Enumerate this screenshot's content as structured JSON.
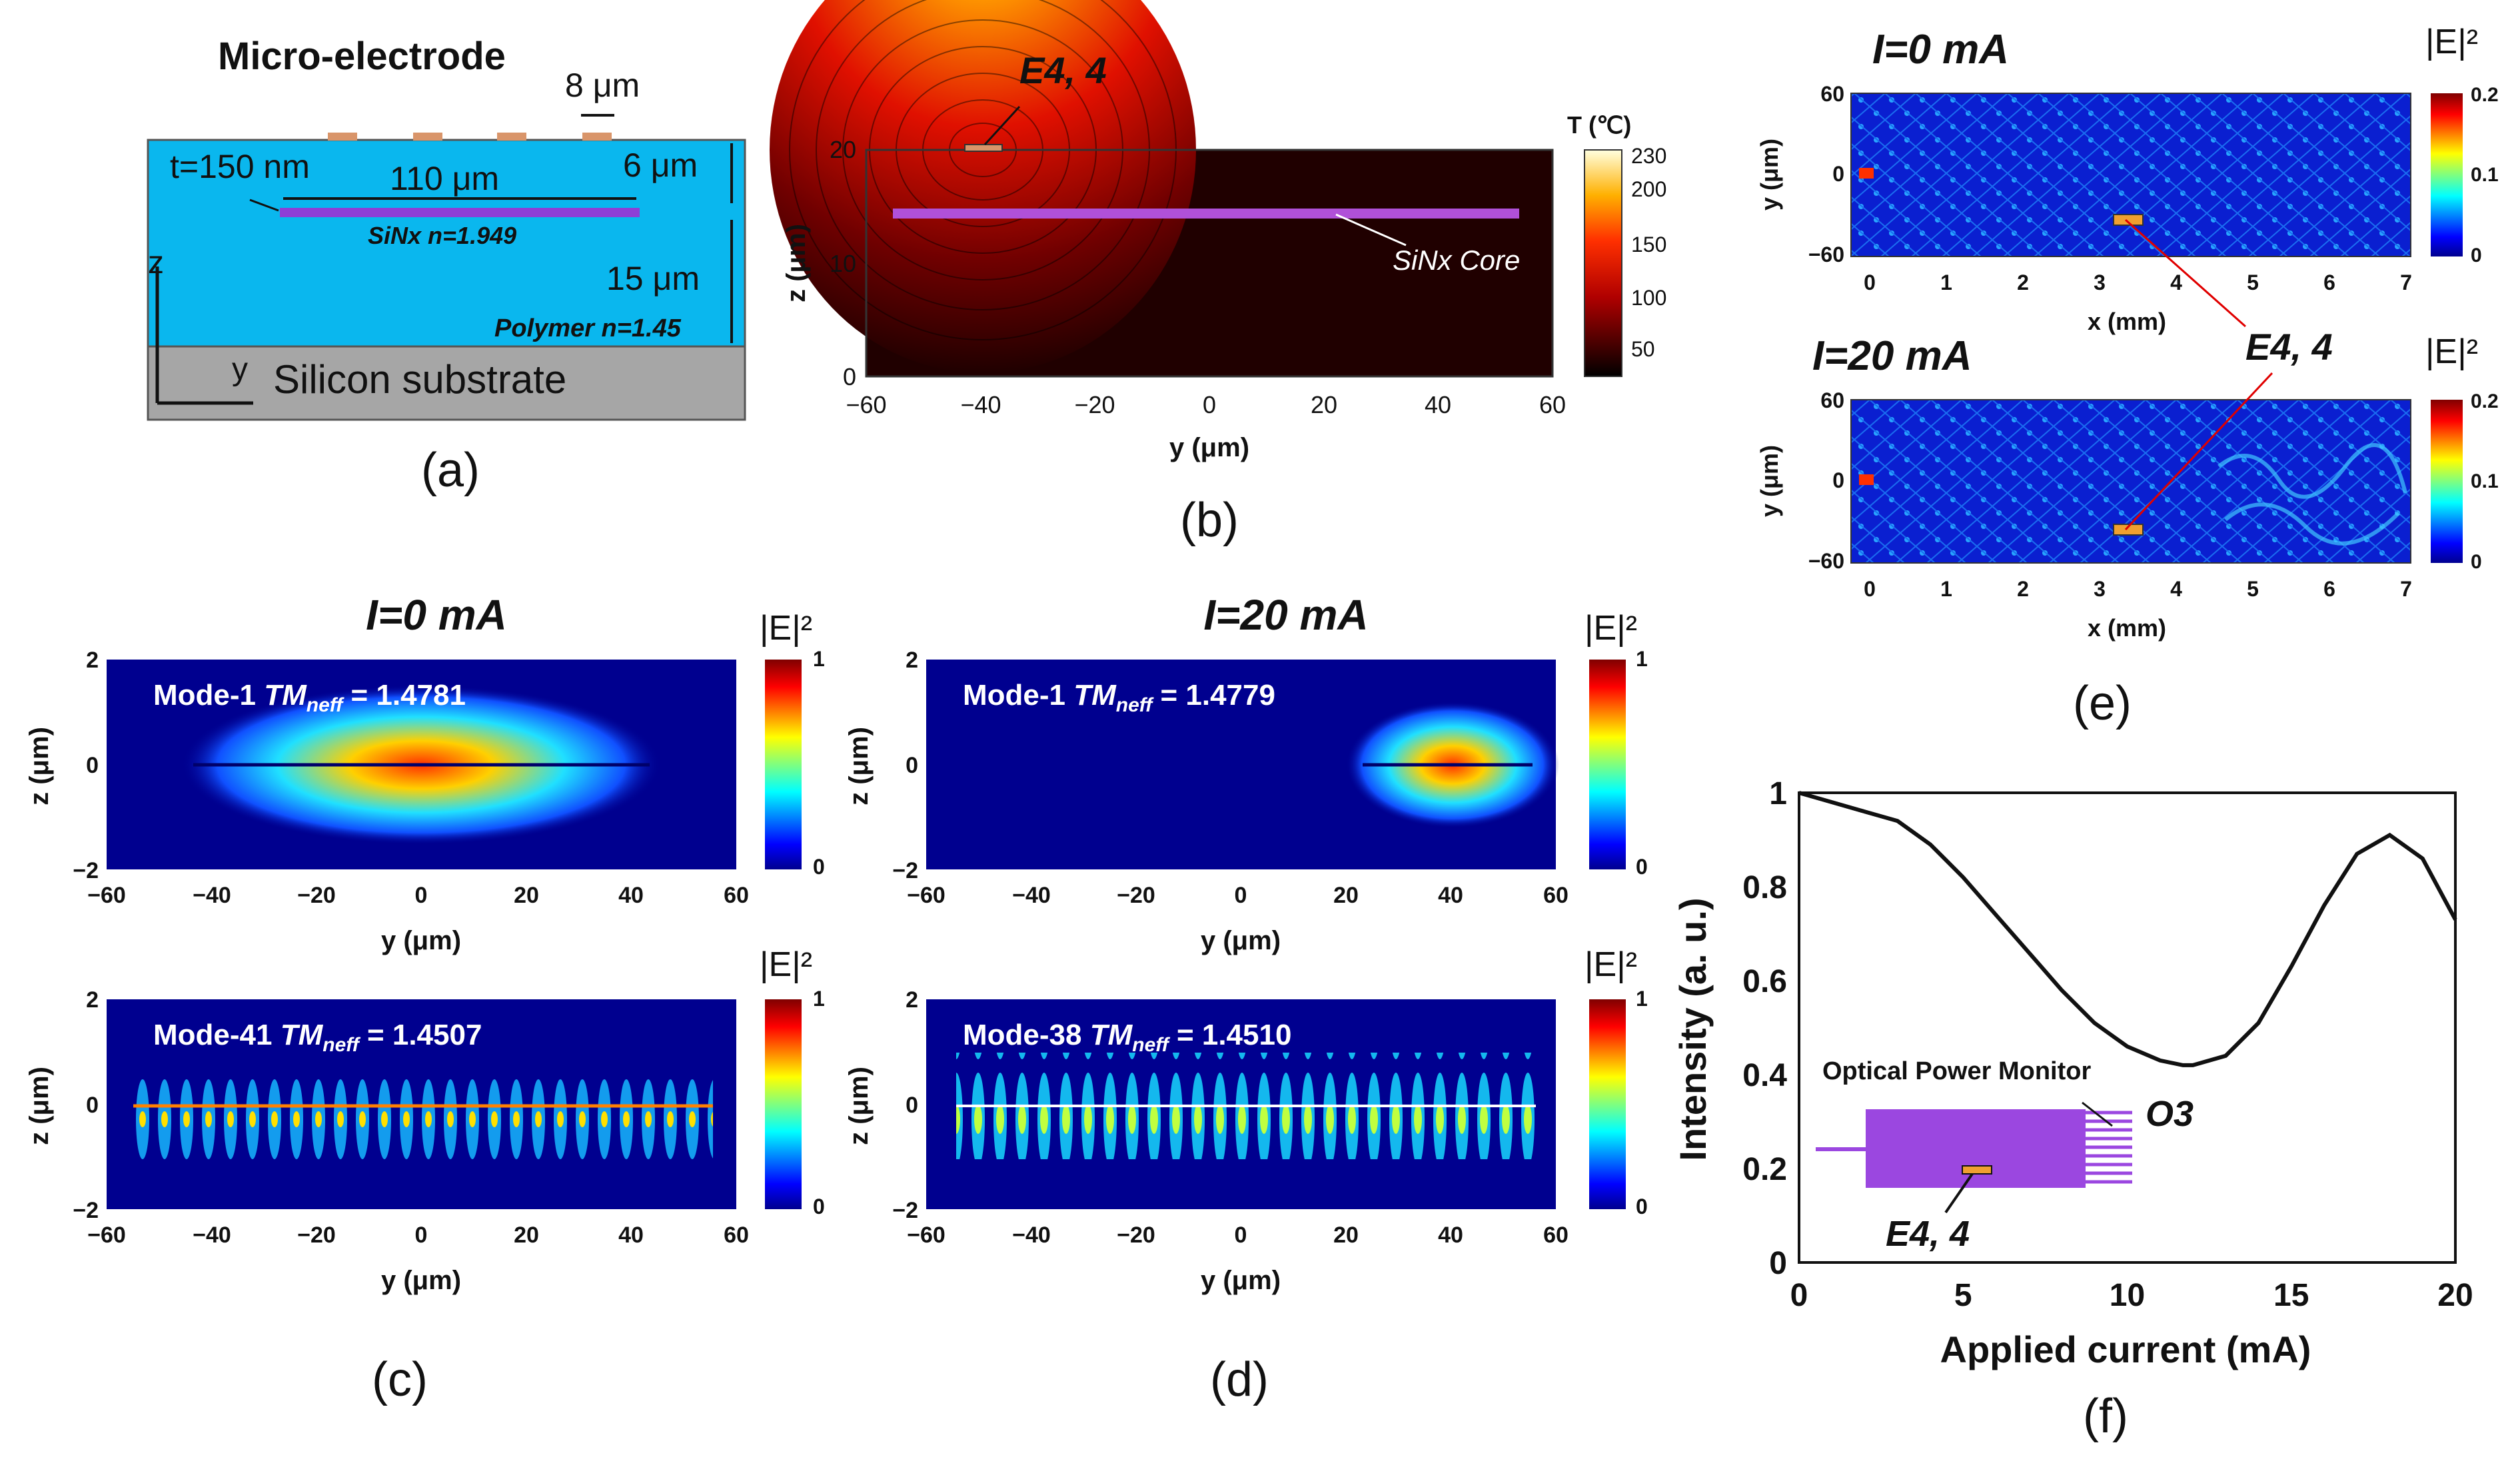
{
  "panel_labels": [
    "(a)",
    "(b)",
    "(c)",
    "(d)",
    "(e)",
    "(f)"
  ],
  "panel_a": {
    "electrode_title": "Micro-electrode",
    "electrode_width": "8 μm",
    "thickness_label": "t=150 nm",
    "core_width": "110 μm",
    "top_cladding": "6 μm",
    "core_label": "SiNx n=1.949",
    "bottom_cladding": "15 μm",
    "polymer_label": "Polymer n=1.45",
    "substrate_label": "Silicon substrate",
    "axis_z": "z",
    "axis_y": "y"
  },
  "panel_b": {
    "electrode_label": "E4, 4",
    "core_label": "SiNx Core",
    "ylabel": "z (μm)",
    "xlabel": "y (μm)",
    "xticks": [
      "−60",
      "−40",
      "−20",
      "0",
      "20",
      "40",
      "60"
    ],
    "yticks": [
      "0",
      "10",
      "20"
    ],
    "colorbar_title": "T (℃)",
    "colorbar_ticks": [
      "230",
      "200",
      "150",
      "100",
      "50"
    ]
  },
  "panel_cd": {
    "title_c": "I=0 mA",
    "title_d": "I=20 mA",
    "colorbar_label": "|E|²",
    "colorbar_ticks": [
      "1",
      "0"
    ],
    "xlabel": "y (μm)",
    "ylabel": "z (μm)",
    "xticks": [
      "−60",
      "−40",
      "−20",
      "0",
      "20",
      "40",
      "60"
    ],
    "yticks": [
      "2",
      "0",
      "−2"
    ],
    "modes": [
      {
        "name": "Mode-1",
        "neff": "= 1.4781"
      },
      {
        "name": "Mode-41",
        "neff": "= 1.4507"
      },
      {
        "name": "Mode-1",
        "neff": "= 1.4779"
      },
      {
        "name": "Mode-38",
        "neff": "= 1.4510"
      }
    ],
    "tm_label": "TM",
    "neff_sub": "neff"
  },
  "panel_e": {
    "title_top": "I=0 mA",
    "title_bottom": "I=20 mA",
    "electrode_label": "E4, 4",
    "xlabel": "x (mm)",
    "ylabel": "y (μm)",
    "xticks": [
      "0",
      "1",
      "2",
      "3",
      "4",
      "5",
      "6",
      "7"
    ],
    "yticks": [
      "60",
      "0",
      "−60"
    ],
    "colorbar_label": "|E|²",
    "colorbar_ticks": [
      "0.2",
      "0.1",
      "0"
    ]
  },
  "chart_data": {
    "type": "line",
    "title": "",
    "xlabel": "Applied current (mA)",
    "ylabel": "Intensity (a. u.)",
    "xlim": [
      0,
      20
    ],
    "ylim": [
      0,
      1
    ],
    "xticks": [
      0,
      5,
      10,
      15,
      20
    ],
    "yticks": [
      0,
      0.2,
      0.4,
      0.6,
      0.8,
      1
    ],
    "series": [
      {
        "name": "Intensity",
        "x": [
          0,
          1,
          2,
          3,
          4,
          5,
          6,
          7,
          8,
          9,
          10,
          11,
          11.7,
          12,
          13,
          14,
          15,
          16,
          17,
          18,
          19,
          20
        ],
        "y": [
          1.0,
          0.98,
          0.96,
          0.94,
          0.89,
          0.82,
          0.74,
          0.66,
          0.58,
          0.51,
          0.46,
          0.43,
          0.42,
          0.42,
          0.44,
          0.51,
          0.63,
          0.76,
          0.87,
          0.91,
          0.86,
          0.73
        ]
      }
    ],
    "annotations": [
      "Optical Power Monitor",
      "O3",
      "E4, 4"
    ]
  }
}
